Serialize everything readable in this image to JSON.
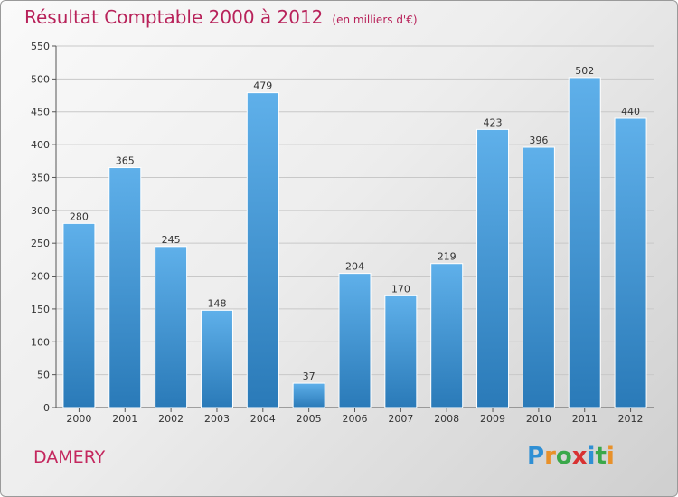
{
  "chart_data": {
    "type": "bar",
    "title": "Résultat Comptable 2000 à 2012",
    "subtitle": "(en milliers d'€)",
    "categories": [
      "2000",
      "2001",
      "2002",
      "2003",
      "2004",
      "2005",
      "2006",
      "2007",
      "2008",
      "2009",
      "2010",
      "2011",
      "2012"
    ],
    "values": [
      280,
      365,
      245,
      148,
      479,
      37,
      204,
      170,
      219,
      423,
      396,
      502,
      440
    ],
    "ylim": [
      0,
      550
    ],
    "yticks": [
      0,
      50,
      100,
      150,
      200,
      250,
      300,
      350,
      400,
      450,
      500,
      550
    ],
    "grid": true,
    "colors": {
      "bar_top": "#5fb0ea",
      "bar_bottom": "#2a7ab8",
      "title": "#b8225a"
    }
  },
  "place_name": "DAMERY",
  "logo": {
    "text": "Proxiti",
    "letters": [
      {
        "ch": "P",
        "color": "#2f8fd4"
      },
      {
        "ch": "r",
        "color": "#e8912a"
      },
      {
        "ch": "o",
        "color": "#3aa84a"
      },
      {
        "ch": "x",
        "color": "#d83232"
      },
      {
        "ch": "i",
        "color": "#2f8fd4"
      },
      {
        "ch": "t",
        "color": "#3aa84a"
      },
      {
        "ch": "i",
        "color": "#e8912a"
      }
    ]
  }
}
